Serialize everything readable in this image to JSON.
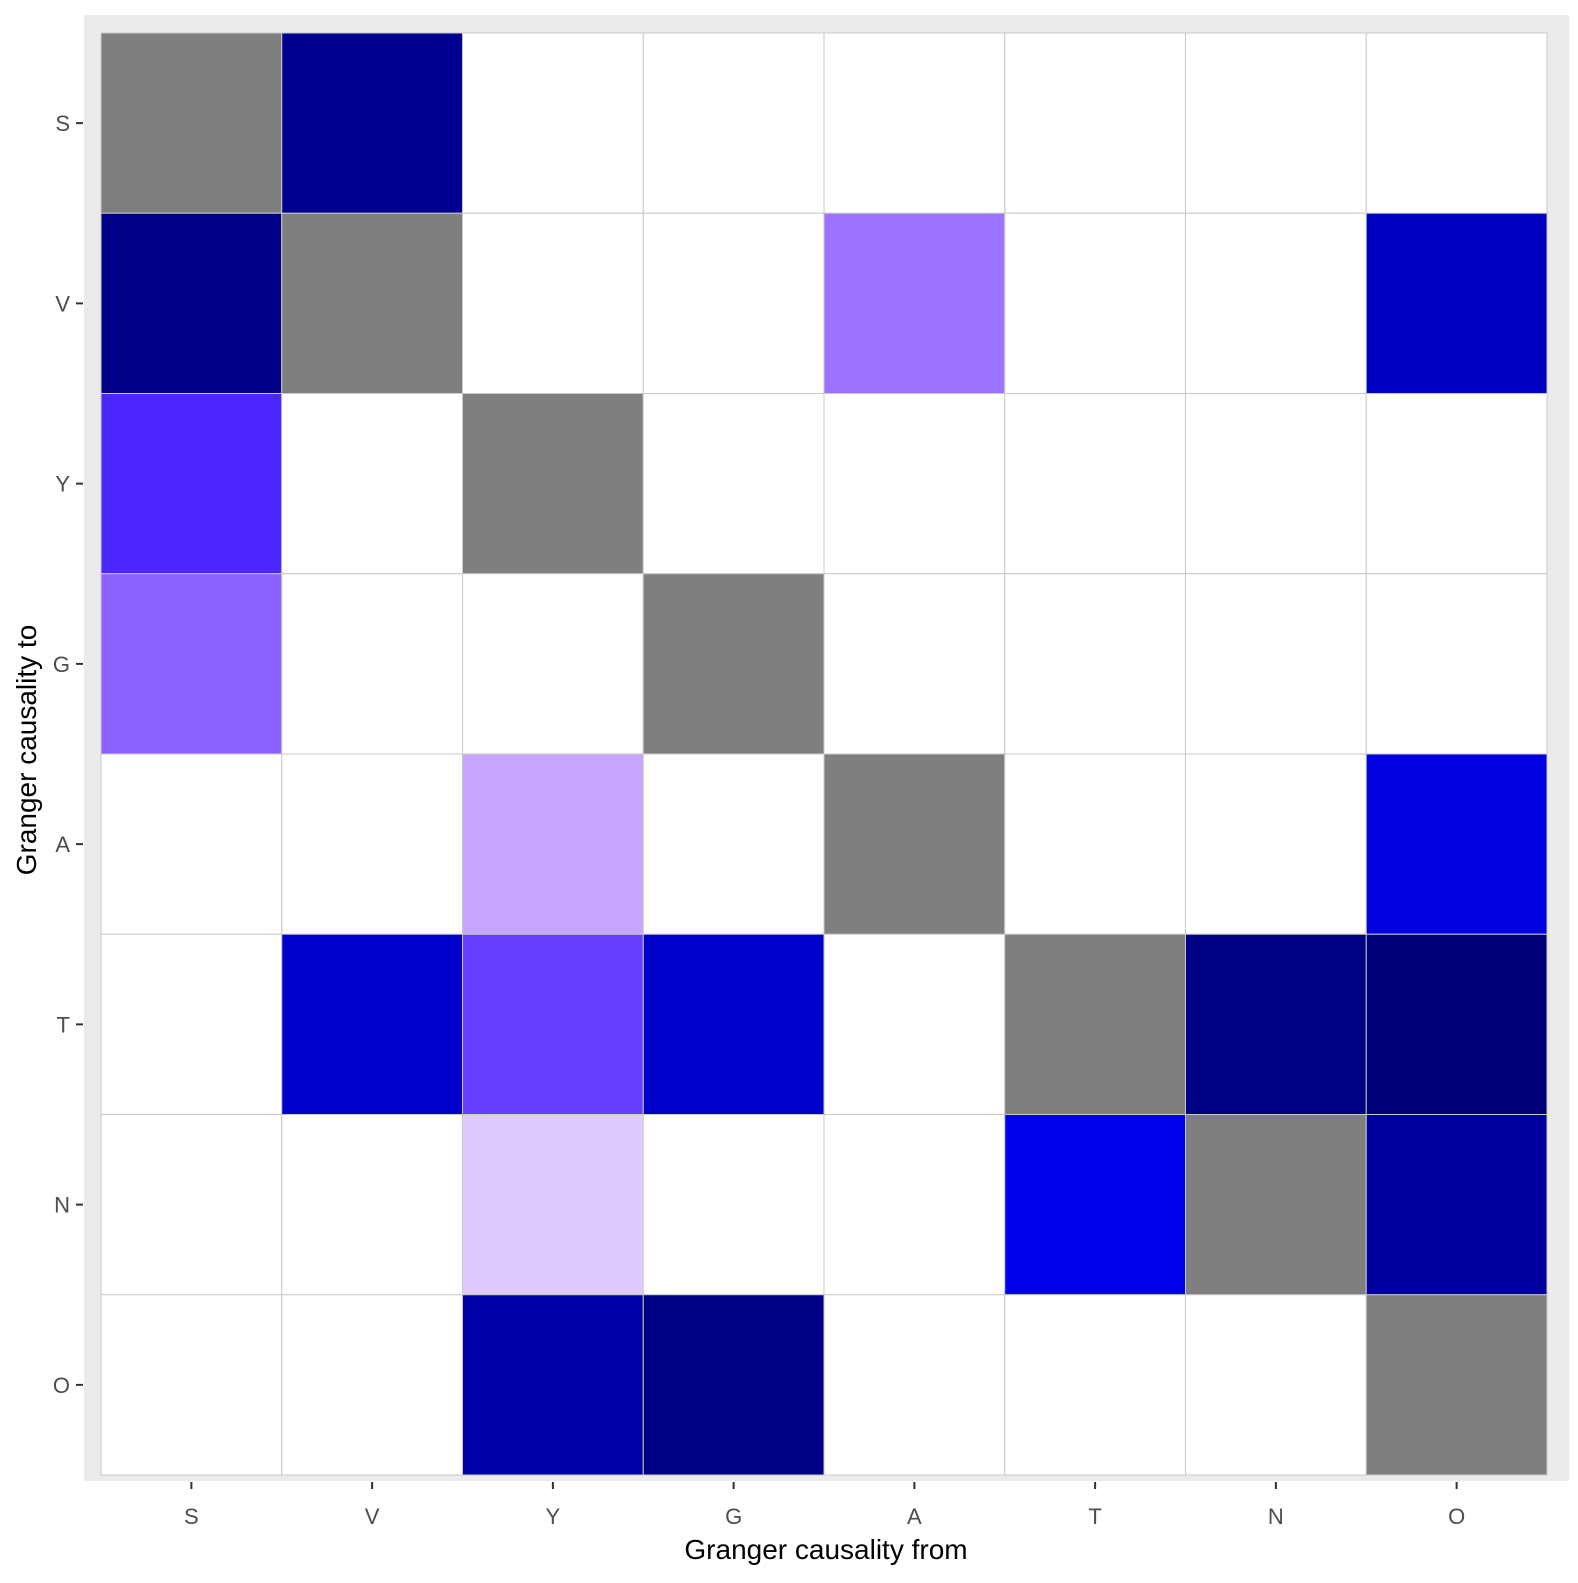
{
  "chart_data": {
    "type": "heatmap",
    "title": "",
    "xlabel": "Granger causality from",
    "ylabel": "Granger causality to",
    "x_categories": [
      "S",
      "V",
      "Y",
      "G",
      "A",
      "T",
      "N",
      "O"
    ],
    "y_categories": [
      "S",
      "V",
      "Y",
      "G",
      "A",
      "T",
      "N",
      "O"
    ],
    "diagonal_color": "#7f7f7f",
    "empty_color": "#ffffff",
    "grid_line_color": "#c8c8c8",
    "panel_background": "#ebebeb",
    "cells": [
      [
        "#7f7f7f",
        "#000090",
        "#ffffff",
        "#ffffff",
        "#ffffff",
        "#ffffff",
        "#ffffff",
        "#ffffff"
      ],
      [
        "#000088",
        "#7f7f7f",
        "#ffffff",
        "#ffffff",
        "#9b73ff",
        "#ffffff",
        "#ffffff",
        "#0000c4"
      ],
      [
        "#4b26ff",
        "#ffffff",
        "#7f7f7f",
        "#ffffff",
        "#ffffff",
        "#ffffff",
        "#ffffff",
        "#ffffff"
      ],
      [
        "#8b62ff",
        "#ffffff",
        "#ffffff",
        "#7f7f7f",
        "#ffffff",
        "#ffffff",
        "#ffffff",
        "#ffffff"
      ],
      [
        "#ffffff",
        "#ffffff",
        "#c6a6ff",
        "#ffffff",
        "#7f7f7f",
        "#ffffff",
        "#ffffff",
        "#0000e0"
      ],
      [
        "#ffffff",
        "#0000cc",
        "#6640ff",
        "#0000cc",
        "#ffffff",
        "#7f7f7f",
        "#000084",
        "#000078"
      ],
      [
        "#ffffff",
        "#ffffff",
        "#dfcbff",
        "#ffffff",
        "#ffffff",
        "#0000ea",
        "#7f7f7f",
        "#0000a0"
      ],
      [
        "#ffffff",
        "#ffffff",
        "#0000a6",
        "#000084",
        "#ffffff",
        "#ffffff",
        "#ffffff",
        "#7f7f7f"
      ]
    ]
  }
}
